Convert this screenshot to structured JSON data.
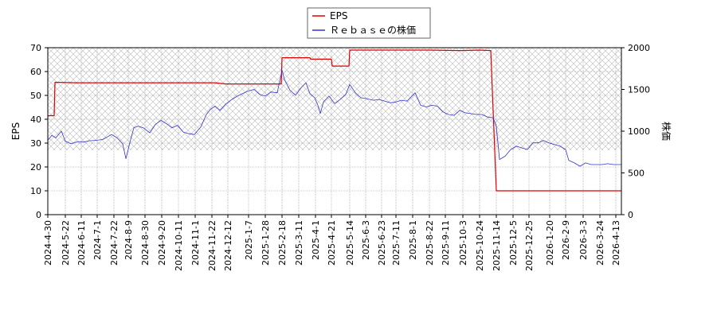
{
  "chart_data": {
    "type": "line",
    "title": "",
    "legend": {
      "placement": "top-center",
      "entries": [
        {
          "label": "EPS",
          "color": "#dd0000"
        },
        {
          "label": "Ｒｅｂａｓｅの株価",
          "color": "#3333cc"
        }
      ]
    },
    "left_axis": {
      "label": "EPS",
      "ylim": [
        0,
        70
      ],
      "ticks": [
        "0",
        "10",
        "20",
        "30",
        "40",
        "50",
        "60",
        "70"
      ]
    },
    "right_axis": {
      "label": "株価",
      "ylim": [
        0,
        2000
      ],
      "ticks": [
        "0",
        "500",
        "1000",
        "1500",
        "2000"
      ]
    },
    "x_axis": {
      "range": [
        "2024-04-30",
        "2026-04-20"
      ],
      "ticks": [
        "2024-4-30",
        "2024-5-22",
        "2024-6-11",
        "2024-7-1",
        "2024-7-22",
        "2024-8-9",
        "2024-8-30",
        "2024-9-20",
        "2024-10-11",
        "2024-11-1",
        "2024-11-22",
        "2024-12-12",
        "2025-1-7",
        "2025-1-28",
        "2025-2-18",
        "2025-3-11",
        "2025-4-1",
        "2025-4-21",
        "2025-5-14",
        "2025-6-3",
        "2025-6-23",
        "2025-7-11",
        "2025-8-1",
        "2025-8-22",
        "2025-9-11",
        "2025-10-3",
        "2025-10-24",
        "2025-11-14",
        "2025-12-5",
        "2025-12-25",
        "2026-1-20",
        "2026-2-9",
        "2026-3-3",
        "2026-3-24",
        "2026-4-13"
      ]
    },
    "shaded_band": {
      "left_axis_range": [
        27,
        70
      ],
      "pattern": "crosshatch"
    },
    "grid": true,
    "series": [
      {
        "name": "EPS",
        "axis": "left",
        "color": "#dd0000",
        "points": [
          [
            "2024-04-30",
            41.5
          ],
          [
            "2024-05-08",
            41.5
          ],
          [
            "2024-05-09",
            55.5
          ],
          [
            "2024-06-05",
            55.3
          ],
          [
            "2024-11-25",
            55.3
          ],
          [
            "2024-12-10",
            54.8
          ],
          [
            "2025-02-17",
            54.8
          ],
          [
            "2025-02-18",
            65.8
          ],
          [
            "2025-03-25",
            65.8
          ],
          [
            "2025-03-26",
            65.2
          ],
          [
            "2025-04-21",
            65.2
          ],
          [
            "2025-04-22",
            62.3
          ],
          [
            "2025-05-13",
            62.3
          ],
          [
            "2025-05-14",
            69.0
          ],
          [
            "2025-08-22",
            69.0
          ],
          [
            "2025-09-30",
            68.8
          ],
          [
            "2025-10-24",
            69.0
          ],
          [
            "2025-11-07",
            68.8
          ],
          [
            "2025-11-14",
            10.0
          ],
          [
            "2026-04-20",
            10.0
          ]
        ]
      },
      {
        "name": "Ｒｅｂａｓｅの株価",
        "axis": "right",
        "color": "#3333cc",
        "points": [
          [
            "2024-04-30",
            890
          ],
          [
            "2024-05-05",
            950
          ],
          [
            "2024-05-10",
            920
          ],
          [
            "2024-05-17",
            1000
          ],
          [
            "2024-05-22",
            880
          ],
          [
            "2024-05-29",
            850
          ],
          [
            "2024-06-07",
            875
          ],
          [
            "2024-06-14",
            870
          ],
          [
            "2024-06-21",
            885
          ],
          [
            "2024-06-28",
            890
          ],
          [
            "2024-07-08",
            900
          ],
          [
            "2024-07-19",
            960
          ],
          [
            "2024-07-26",
            920
          ],
          [
            "2024-08-02",
            850
          ],
          [
            "2024-08-06",
            670
          ],
          [
            "2024-08-12",
            900
          ],
          [
            "2024-08-16",
            1040
          ],
          [
            "2024-08-21",
            1060
          ],
          [
            "2024-08-28",
            1040
          ],
          [
            "2024-09-05",
            980
          ],
          [
            "2024-09-12",
            1080
          ],
          [
            "2024-09-19",
            1130
          ],
          [
            "2024-09-26",
            1090
          ],
          [
            "2024-10-03",
            1040
          ],
          [
            "2024-10-10",
            1070
          ],
          [
            "2024-10-17",
            990
          ],
          [
            "2024-10-24",
            970
          ],
          [
            "2024-10-31",
            960
          ],
          [
            "2024-11-08",
            1050
          ],
          [
            "2024-11-15",
            1200
          ],
          [
            "2024-11-20",
            1260
          ],
          [
            "2024-11-26",
            1300
          ],
          [
            "2024-12-02",
            1250
          ],
          [
            "2024-12-10",
            1330
          ],
          [
            "2024-12-17",
            1380
          ],
          [
            "2024-12-24",
            1420
          ],
          [
            "2025-01-06",
            1480
          ],
          [
            "2025-01-14",
            1500
          ],
          [
            "2025-01-21",
            1440
          ],
          [
            "2025-01-28",
            1420
          ],
          [
            "2025-02-04",
            1470
          ],
          [
            "2025-02-12",
            1460
          ],
          [
            "2025-02-18",
            1730
          ],
          [
            "2025-02-21",
            1620
          ],
          [
            "2025-02-28",
            1490
          ],
          [
            "2025-03-07",
            1430
          ],
          [
            "2025-03-14",
            1520
          ],
          [
            "2025-03-20",
            1580
          ],
          [
            "2025-03-25",
            1450
          ],
          [
            "2025-03-31",
            1400
          ],
          [
            "2025-04-04",
            1310
          ],
          [
            "2025-04-07",
            1210
          ],
          [
            "2025-04-11",
            1350
          ],
          [
            "2025-04-18",
            1420
          ],
          [
            "2025-04-25",
            1330
          ],
          [
            "2025-05-02",
            1380
          ],
          [
            "2025-05-09",
            1440
          ],
          [
            "2025-05-14",
            1560
          ],
          [
            "2025-05-21",
            1460
          ],
          [
            "2025-05-28",
            1400
          ],
          [
            "2025-06-04",
            1390
          ],
          [
            "2025-06-13",
            1370
          ],
          [
            "2025-06-20",
            1380
          ],
          [
            "2025-06-27",
            1360
          ],
          [
            "2025-07-04",
            1340
          ],
          [
            "2025-07-11",
            1350
          ],
          [
            "2025-07-18",
            1370
          ],
          [
            "2025-07-25",
            1360
          ],
          [
            "2025-07-31",
            1420
          ],
          [
            "2025-08-04",
            1460
          ],
          [
            "2025-08-11",
            1310
          ],
          [
            "2025-08-18",
            1290
          ],
          [
            "2025-08-25",
            1310
          ],
          [
            "2025-09-01",
            1300
          ],
          [
            "2025-09-08",
            1230
          ],
          [
            "2025-09-15",
            1200
          ],
          [
            "2025-09-22",
            1190
          ],
          [
            "2025-09-29",
            1250
          ],
          [
            "2025-10-06",
            1220
          ],
          [
            "2025-10-13",
            1210
          ],
          [
            "2025-10-20",
            1200
          ],
          [
            "2025-10-27",
            1200
          ],
          [
            "2025-11-03",
            1170
          ],
          [
            "2025-11-10",
            1160
          ],
          [
            "2025-11-14",
            1060
          ],
          [
            "2025-11-18",
            660
          ],
          [
            "2025-11-25",
            700
          ],
          [
            "2025-12-02",
            780
          ],
          [
            "2025-12-09",
            820
          ],
          [
            "2025-12-16",
            800
          ],
          [
            "2025-12-23",
            780
          ],
          [
            "2025-12-30",
            860
          ],
          [
            "2026-01-06",
            860
          ],
          [
            "2026-01-12",
            890
          ],
          [
            "2026-01-19",
            860
          ],
          [
            "2026-01-26",
            840
          ],
          [
            "2026-02-02",
            820
          ],
          [
            "2026-02-09",
            780
          ],
          [
            "2026-02-13",
            650
          ],
          [
            "2026-02-20",
            620
          ],
          [
            "2026-02-27",
            580
          ],
          [
            "2026-03-06",
            620
          ],
          [
            "2026-03-13",
            600
          ],
          [
            "2026-03-20",
            600
          ],
          [
            "2026-03-27",
            600
          ],
          [
            "2026-04-03",
            610
          ],
          [
            "2026-04-10",
            600
          ],
          [
            "2026-04-20",
            600
          ]
        ]
      }
    ]
  }
}
